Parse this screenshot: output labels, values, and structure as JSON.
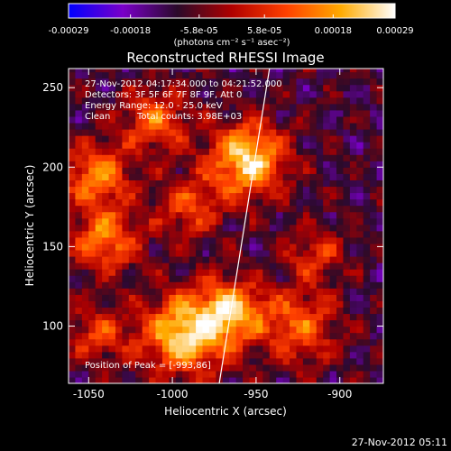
{
  "colorbar": {
    "tick_labels": [
      "-0.00029",
      "-0.00018",
      "-5.8e-05",
      "5.8e-05",
      "0.00018",
      "0.00029"
    ],
    "tick_values": [
      -0.00029,
      -0.00018,
      -5.8e-05,
      5.8e-05,
      0.00018,
      0.00029
    ],
    "units_label": "(photons cm⁻² s⁻¹ asec⁻²)",
    "range": [
      -0.00029,
      0.00029
    ],
    "colors": [
      "#0000ff",
      "#7a00c8",
      "#2a0a2a",
      "#b00000",
      "#ff4000",
      "#ffaa00",
      "#ffffff"
    ]
  },
  "title": "Reconstructed RHESSI Image",
  "annotations": {
    "time_range": "27-Nov-2012 04:17:34.000 to 04:21:52.000",
    "detectors": "Detectors: 3F 5F 6F 7F 8F 9F, Att 0",
    "energy_range": "Energy Range: 12.0 - 25.0 keV",
    "algorithm": "Clean",
    "total_counts": "Total counts: 3.98E+03",
    "peak_position": "Position of Peak = [-993,86]"
  },
  "footer_timestamp": "27-Nov-2012 05:11",
  "chart_data": {
    "type": "heatmap",
    "title": "Reconstructed RHESSI Image",
    "xlabel": "Heliocentric X (arcsec)",
    "ylabel": "Heliocentric Y (arcsec)",
    "xlim": [
      -1062,
      -874
    ],
    "ylim": [
      64,
      262
    ],
    "xticks": [
      -1050,
      -1000,
      -950,
      -900
    ],
    "yticks": [
      100,
      150,
      200,
      250
    ],
    "xtick_labels": [
      "-1050",
      "-1000",
      "-950",
      "-900"
    ],
    "ytick_labels": [
      "100",
      "150",
      "200",
      "250"
    ],
    "limb_line": [
      [
        -972,
        64
      ],
      [
        -942,
        262
      ]
    ],
    "peak": [
      -993,
      86
    ],
    "bright_regions": [
      {
        "x": -955,
        "y": 205,
        "r": 16,
        "level": 1.0
      },
      {
        "x": -993,
        "y": 95,
        "r": 18,
        "level": 0.95
      },
      {
        "x": -965,
        "y": 110,
        "r": 14,
        "level": 0.8
      },
      {
        "x": -1045,
        "y": 195,
        "r": 14,
        "level": 0.7
      },
      {
        "x": -1040,
        "y": 155,
        "r": 14,
        "level": 0.7
      },
      {
        "x": -1010,
        "y": 230,
        "r": 14,
        "level": 0.6
      },
      {
        "x": -925,
        "y": 100,
        "r": 16,
        "level": 0.6
      },
      {
        "x": -1045,
        "y": 95,
        "r": 12,
        "level": 0.5
      },
      {
        "x": -990,
        "y": 175,
        "r": 14,
        "level": 0.5
      },
      {
        "x": -915,
        "y": 145,
        "r": 12,
        "level": 0.45
      }
    ],
    "grid": false,
    "legend": "none"
  }
}
